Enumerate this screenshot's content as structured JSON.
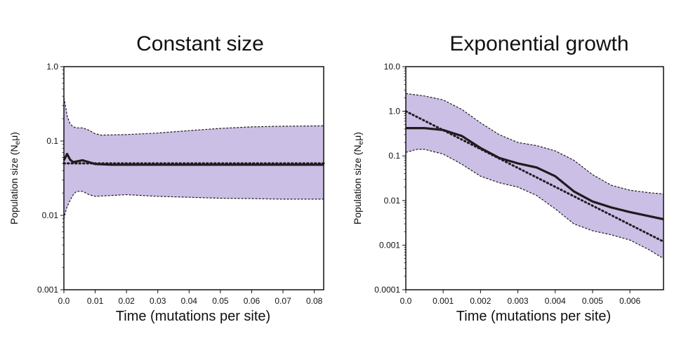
{
  "chart_data": [
    {
      "type": "line",
      "title": "Constant size",
      "xlabel": "Time (mutations per site)",
      "ylabel": "Population size (N",
      "ylabel_sub": "e",
      "ylabel_end": "μ)",
      "yscale": "log",
      "xlim": [
        0,
        0.083
      ],
      "ylim": [
        0.001,
        1.0
      ],
      "xticks": [
        "0.0",
        "0.01",
        "0.02",
        "0.03",
        "0.04",
        "0.05",
        "0.06",
        "0.07",
        "0.08"
      ],
      "yticks": [
        "1.0",
        "0.1",
        "0.01",
        "0.001"
      ],
      "grid": false,
      "colors": {
        "band": "#cbbfe6",
        "line": "#231a1e"
      },
      "series": [
        {
          "role": "median",
          "style": "solid",
          "x": [
            0,
            0.001,
            0.002,
            0.003,
            0.004,
            0.006,
            0.008,
            0.01,
            0.015,
            0.03,
            0.05,
            0.083
          ],
          "y": [
            0.055,
            0.067,
            0.056,
            0.052,
            0.053,
            0.055,
            0.052,
            0.049,
            0.048,
            0.048,
            0.048,
            0.048
          ]
        },
        {
          "role": "true",
          "style": "dotted",
          "x": [
            0,
            0.083
          ],
          "y": [
            0.05,
            0.05
          ]
        },
        {
          "role": "upper_hpd",
          "style": "dashed",
          "x": [
            0,
            0.0005,
            0.001,
            0.002,
            0.003,
            0.004,
            0.006,
            0.008,
            0.01,
            0.012,
            0.02,
            0.03,
            0.04,
            0.05,
            0.06,
            0.07,
            0.083
          ],
          "y": [
            0.38,
            0.3,
            0.22,
            0.17,
            0.155,
            0.15,
            0.15,
            0.14,
            0.125,
            0.12,
            0.122,
            0.128,
            0.138,
            0.148,
            0.155,
            0.158,
            0.16
          ]
        },
        {
          "role": "lower_hpd",
          "style": "dashed",
          "x": [
            0,
            0.0005,
            0.001,
            0.002,
            0.003,
            0.004,
            0.006,
            0.008,
            0.01,
            0.02,
            0.03,
            0.04,
            0.05,
            0.06,
            0.07,
            0.083
          ],
          "y": [
            0.009,
            0.011,
            0.013,
            0.016,
            0.019,
            0.021,
            0.021,
            0.019,
            0.018,
            0.019,
            0.018,
            0.0175,
            0.017,
            0.0168,
            0.0165,
            0.0165
          ]
        }
      ]
    },
    {
      "type": "line",
      "title": "Exponential growth",
      "xlabel": "Time (mutations per site)",
      "ylabel": "Population size (N",
      "ylabel_sub": "e",
      "ylabel_end": "μ)",
      "yscale": "log",
      "xlim": [
        0,
        0.0069
      ],
      "ylim": [
        0.0001,
        10.0
      ],
      "xticks": [
        "0.0",
        "0.001",
        "0.002",
        "0.003",
        "0.004",
        "0.005",
        "0.006"
      ],
      "yticks": [
        "10.0",
        "1.0",
        "0.1",
        "0.01",
        "0.001",
        "0.0001"
      ],
      "grid": false,
      "colors": {
        "band": "#cbbfe6",
        "line": "#231a1e"
      },
      "series": [
        {
          "role": "median",
          "style": "solid",
          "x": [
            0,
            0.0005,
            0.001,
            0.0015,
            0.002,
            0.0025,
            0.003,
            0.0035,
            0.004,
            0.0045,
            0.005,
            0.0055,
            0.006,
            0.0065,
            0.0069
          ],
          "y": [
            0.42,
            0.42,
            0.38,
            0.28,
            0.15,
            0.09,
            0.068,
            0.055,
            0.035,
            0.016,
            0.0095,
            0.007,
            0.0055,
            0.0045,
            0.0038
          ]
        },
        {
          "role": "true",
          "style": "dotted",
          "x": [
            0,
            0.0069
          ],
          "y": [
            1.0,
            0.0012
          ]
        },
        {
          "role": "upper_hpd",
          "style": "dashed",
          "x": [
            0,
            0.0005,
            0.001,
            0.0015,
            0.002,
            0.0025,
            0.003,
            0.0035,
            0.004,
            0.0045,
            0.005,
            0.0055,
            0.006,
            0.0065,
            0.0069
          ],
          "y": [
            2.5,
            2.2,
            1.8,
            1.1,
            0.55,
            0.3,
            0.2,
            0.17,
            0.13,
            0.08,
            0.038,
            0.022,
            0.017,
            0.015,
            0.014
          ]
        },
        {
          "role": "lower_hpd",
          "style": "dashed",
          "x": [
            0,
            0.0003,
            0.0005,
            0.001,
            0.0015,
            0.002,
            0.0025,
            0.003,
            0.0035,
            0.004,
            0.0045,
            0.005,
            0.0055,
            0.006,
            0.0065,
            0.0069
          ],
          "y": [
            0.12,
            0.14,
            0.14,
            0.11,
            0.065,
            0.035,
            0.025,
            0.02,
            0.013,
            0.0065,
            0.003,
            0.0021,
            0.0017,
            0.0013,
            0.0008,
            0.0005
          ]
        }
      ]
    }
  ]
}
